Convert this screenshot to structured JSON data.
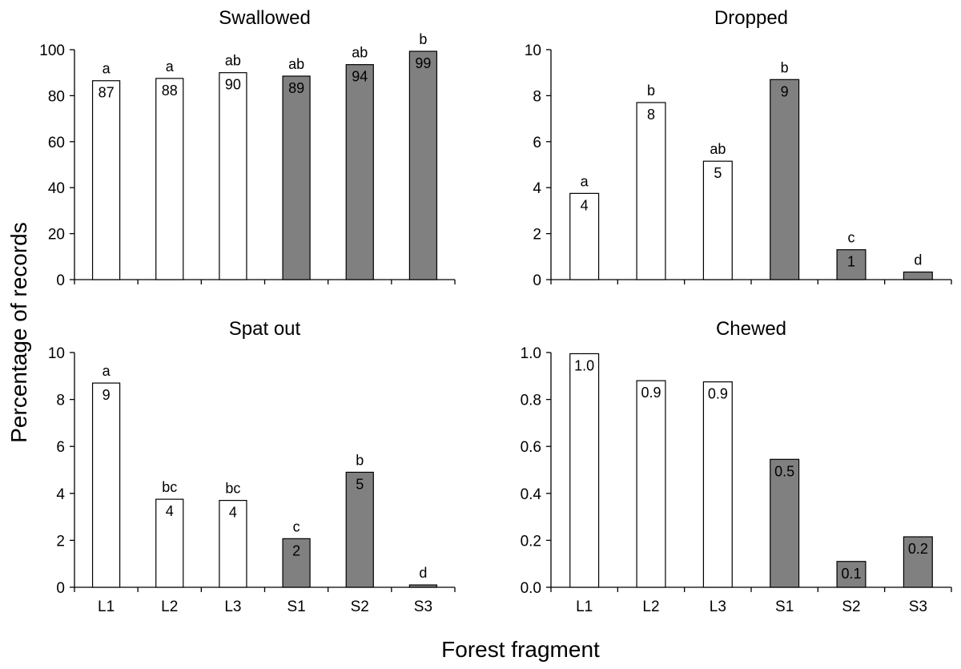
{
  "figure": {
    "ylabel": "Percentage of records",
    "xlabel": "Forest fragment"
  },
  "colors": {
    "large_fragment_fill": "#ffffff",
    "small_fragment_fill": "#808080",
    "stroke": "#000000"
  },
  "chart_data": [
    {
      "type": "bar",
      "title": "Swallowed",
      "categories": [
        "L1",
        "L2",
        "L3",
        "S1",
        "S2",
        "S3"
      ],
      "values": [
        86.5,
        87.5,
        90,
        88.5,
        93.5,
        99.3
      ],
      "value_labels": [
        "87",
        "88",
        "90",
        "89",
        "94",
        "99"
      ],
      "letters": [
        "a",
        "a",
        "ab",
        "ab",
        "ab",
        "b"
      ],
      "ylim": [
        0,
        100
      ],
      "yticks": [
        "0",
        "20",
        "40",
        "60",
        "80",
        "100"
      ],
      "show_category_labels": false
    },
    {
      "type": "bar",
      "title": "Dropped",
      "categories": [
        "L1",
        "L2",
        "L3",
        "S1",
        "S2",
        "S3"
      ],
      "values": [
        3.75,
        7.7,
        5.15,
        8.7,
        1.3,
        0.33
      ],
      "value_labels": [
        "4",
        "8",
        "5",
        "9",
        "1",
        ""
      ],
      "letters": [
        "a",
        "b",
        "ab",
        "b",
        "c",
        "d"
      ],
      "ylim": [
        0,
        10
      ],
      "yticks": [
        "0",
        "2",
        "4",
        "6",
        "8",
        "10"
      ],
      "show_category_labels": false
    },
    {
      "type": "bar",
      "title": "Spat out",
      "categories": [
        "L1",
        "L2",
        "L3",
        "S1",
        "S2",
        "S3"
      ],
      "values": [
        8.7,
        3.75,
        3.7,
        2.07,
        4.9,
        0.1
      ],
      "value_labels": [
        "9",
        "4",
        "4",
        "2",
        "5",
        ""
      ],
      "letters": [
        "a",
        "bc",
        "bc",
        "c",
        "b",
        "d"
      ],
      "ylim": [
        0,
        10
      ],
      "yticks": [
        "0",
        "2",
        "4",
        "6",
        "8",
        "10"
      ],
      "show_category_labels": true
    },
    {
      "type": "bar",
      "title": "Chewed",
      "categories": [
        "L1",
        "L2",
        "L3",
        "S1",
        "S2",
        "S3"
      ],
      "values": [
        0.995,
        0.88,
        0.875,
        0.545,
        0.11,
        0.215
      ],
      "value_labels": [
        "1.0",
        "0.9",
        "0.9",
        "0.5",
        "0.1",
        "0.2"
      ],
      "letters": [
        "",
        "",
        "",
        "",
        "",
        ""
      ],
      "ylim": [
        0,
        1.0
      ],
      "yticks": [
        "0.0",
        "0.2",
        "0.4",
        "0.6",
        "0.8",
        "1.0"
      ],
      "show_category_labels": true
    }
  ]
}
